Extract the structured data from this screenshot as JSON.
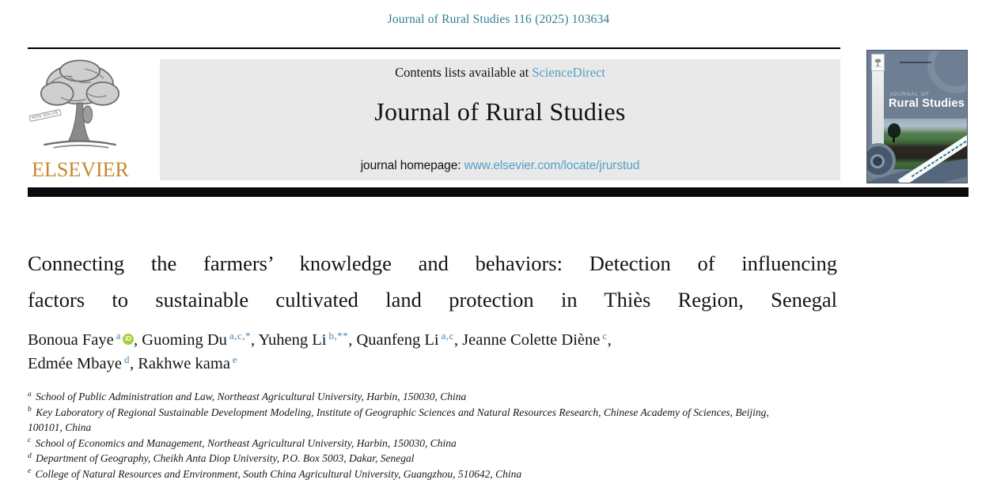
{
  "header": {
    "citation": "Journal of Rural Studies 116 (2025) 103634",
    "contents_prefix": "Contents lists available at ",
    "sciencedirect_link": "ScienceDirect",
    "journal_title": "Journal of Rural Studies",
    "homepage_prefix": "journal homepage: ",
    "homepage_link": "www.elsevier.com/locate/jrurstud"
  },
  "elsevier": {
    "wordmark": "ELSEVIER",
    "motto": "NON SOLUS"
  },
  "cover": {
    "kicker": "JOURNAL OF",
    "title": "Rural Studies"
  },
  "article": {
    "title_lines": [
      "Connecting the farmers’ knowledge and behaviors: Detection of influencing",
      "factors to sustainable cultivated land protection in Thiès Region, Senegal"
    ],
    "authors": [
      {
        "name": "Bonoua Faye",
        "sup": "a",
        "orcid": true
      },
      {
        "name": "Guoming Du",
        "sup": "a,c,*"
      },
      {
        "name": "Yuheng Li",
        "sup": "b,**"
      },
      {
        "name": "Quanfeng Li",
        "sup": "a,c"
      },
      {
        "name": "Jeanne Colette Diène",
        "sup": "c"
      },
      {
        "name": "Edmée Mbaye",
        "sup": "d"
      },
      {
        "name": "Rakhwe kama",
        "sup": "e"
      }
    ],
    "authors_line_break_after_index": 4,
    "orcid_icon_label": "iD",
    "affiliations": [
      {
        "label": "a",
        "lines": [
          "School of Public Administration and Law, Northeast Agricultural University, Harbin, 150030, China"
        ]
      },
      {
        "label": "b",
        "lines": [
          "Key Laboratory of Regional Sustainable Development Modeling, Institute of Geographic Sciences and Natural Resources Research, Chinese Academy of Sciences, Beijing,",
          "100101, China"
        ]
      },
      {
        "label": "c",
        "lines": [
          "School of Economics and Management, Northeast Agricultural University, Harbin, 150030, China"
        ]
      },
      {
        "label": "d",
        "lines": [
          "Department of Geography, Cheikh Anta Diop University, P.O. Box 5003, Dakar, Senegal"
        ]
      },
      {
        "label": "e",
        "lines": [
          "College of Natural Resources and Environment, South China Agricultural University, Guangzhou, 510642, China"
        ]
      }
    ]
  },
  "colors": {
    "citation_teal": "#2e7e95",
    "author_sup_blue": "#4484b2",
    "link_blue": "#55a1c6",
    "orcid_green": "#a6ce39",
    "elsevier_orange": "#c8872f",
    "banner_gray": "#e9e9e9",
    "divider_black": "#0b0b0b",
    "cover_background": "#6f7f93"
  }
}
